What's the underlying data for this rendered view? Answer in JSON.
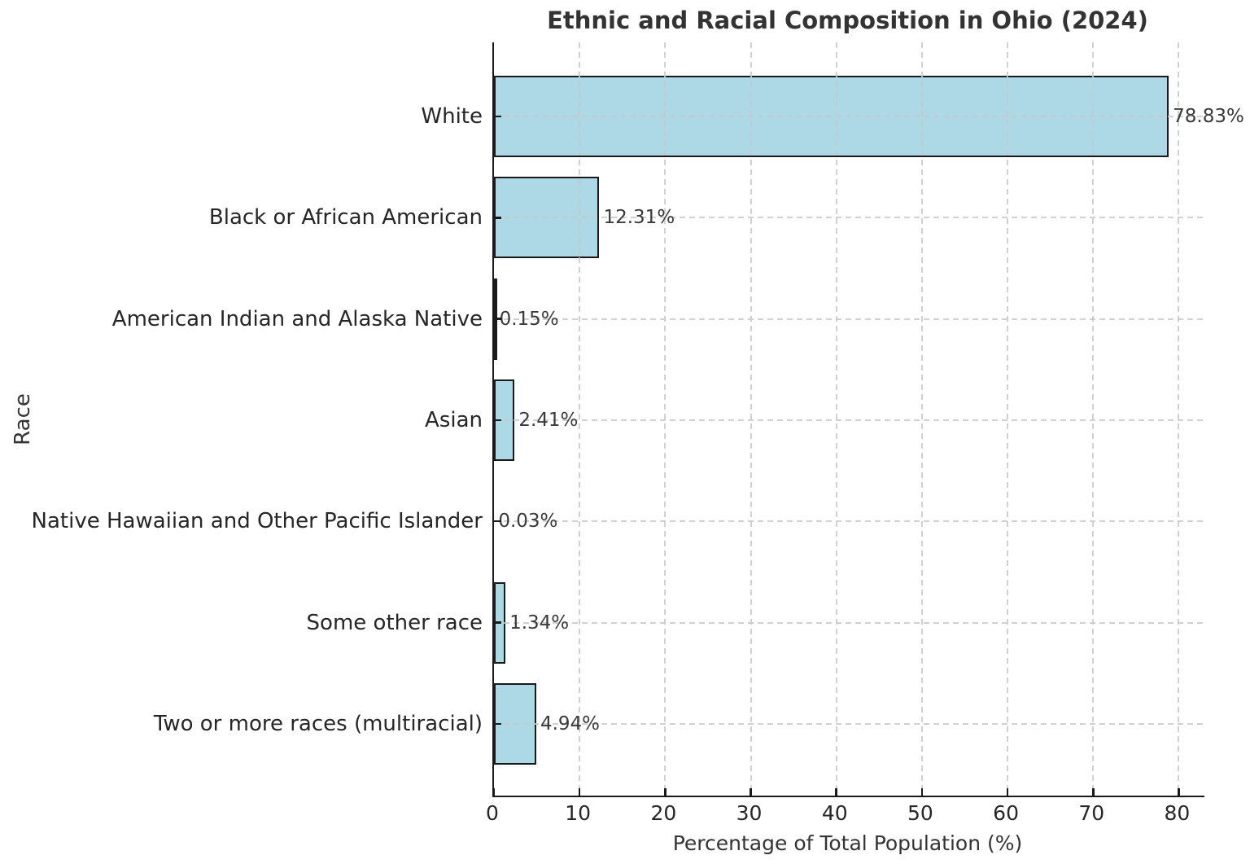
{
  "chart_data": {
    "type": "bar",
    "orientation": "horizontal",
    "title": "Ethnic and Racial Composition in Ohio (2024)",
    "xlabel": "Percentage of Total Population (%)",
    "ylabel": "Race",
    "categories": [
      "White",
      "Black or African American",
      "American Indian and Alaska Native",
      "Asian",
      "Native Hawaiian and Other Pacific Islander",
      "Some other race",
      "Two or more races (multiracial)"
    ],
    "values": [
      78.83,
      12.31,
      0.15,
      2.41,
      0.03,
      1.34,
      4.94
    ],
    "value_labels": [
      "78.83%",
      "12.31%",
      "0.15%",
      "2.41%",
      "0.03%",
      "1.34%",
      "4.94%"
    ],
    "xticks": [
      0,
      10,
      20,
      30,
      40,
      50,
      60,
      70,
      80
    ],
    "xlim": [
      0,
      83
    ],
    "grid": true,
    "grid_style": "dashed",
    "legend_position": "none",
    "bar_color": "#ADD8E6",
    "bar_edge_color": "#1a1a1a",
    "grid_color": "#c9c9c9",
    "text_color": "#333333"
  }
}
